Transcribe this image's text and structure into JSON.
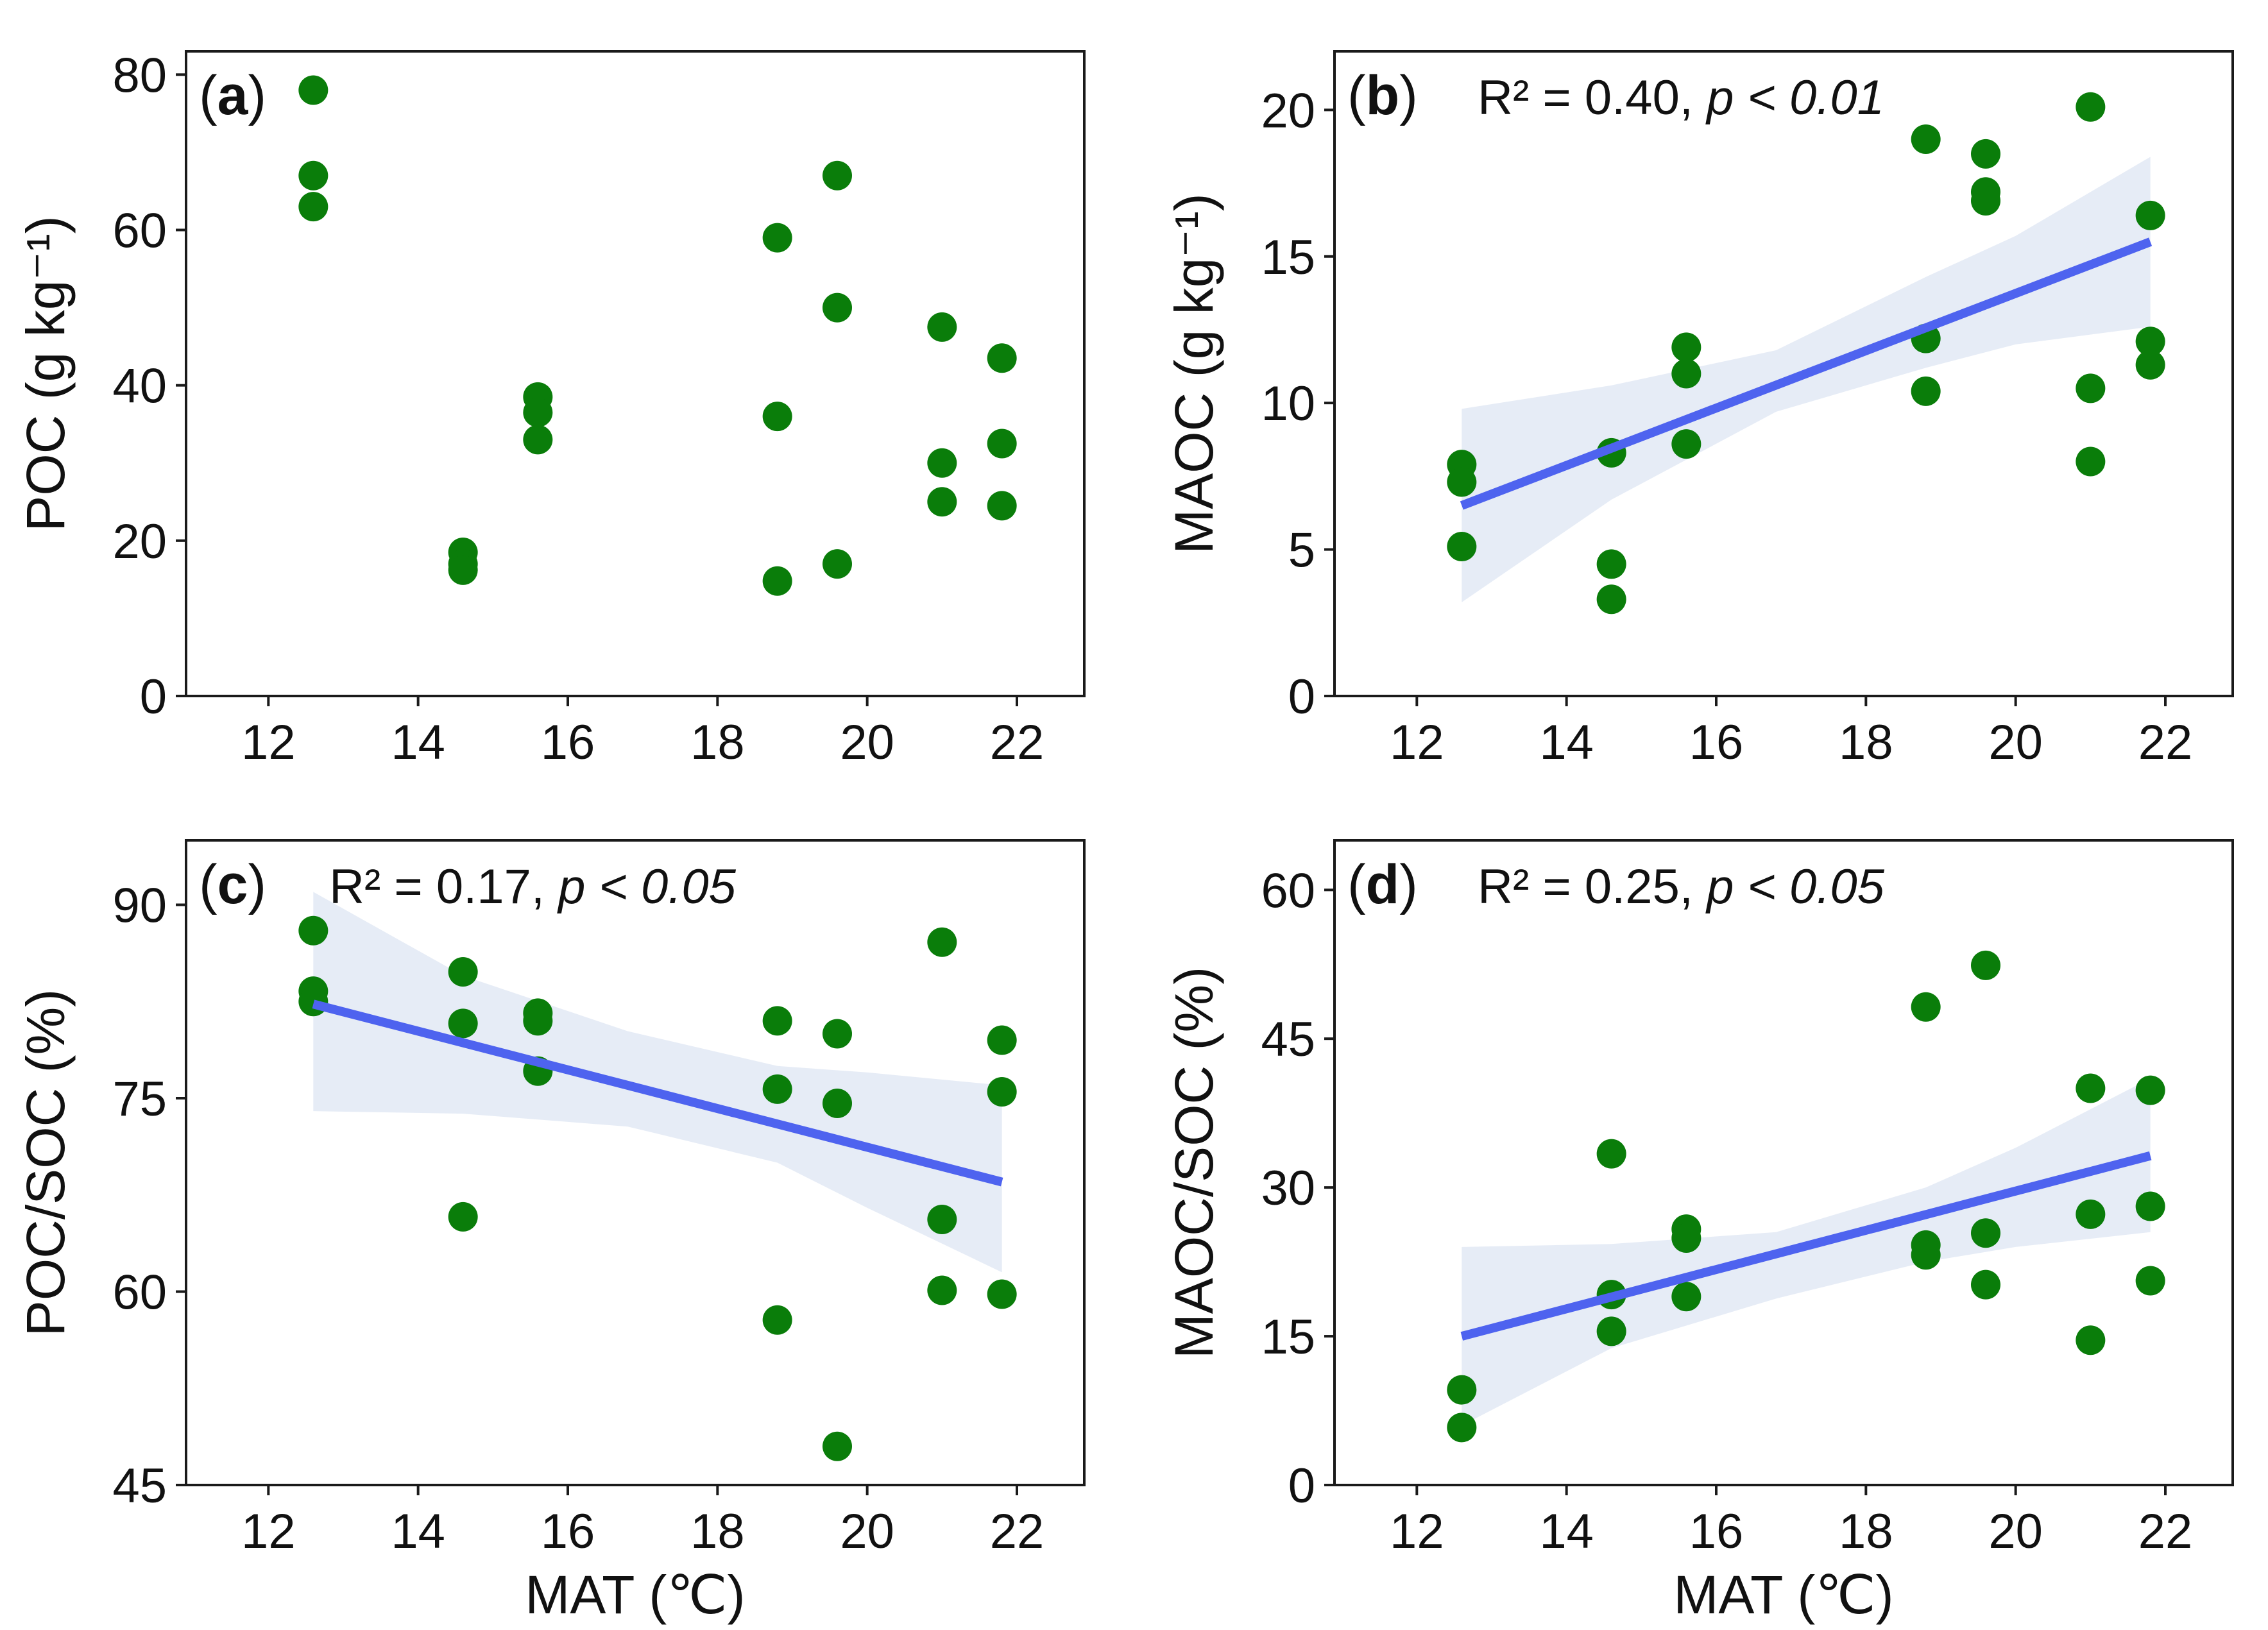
{
  "colors": {
    "point": "#0a7d0a",
    "fit_line": "#4e63ef",
    "ci_band": "#b8c9e4"
  },
  "chart_data": [
    {
      "id": "a",
      "type": "scatter",
      "label": "(a)",
      "stat_r2": "",
      "stat_p": "",
      "xlabel": "",
      "ylabel": "POC (g kg⁻¹)",
      "xlim": [
        10.9,
        22.9
      ],
      "ylim": [
        0,
        83
      ],
      "xticks": [
        12,
        14,
        16,
        18,
        20,
        22
      ],
      "yticks": [
        0,
        20,
        40,
        60,
        80
      ],
      "points": [
        [
          12.6,
          78
        ],
        [
          12.6,
          67
        ],
        [
          12.6,
          63
        ],
        [
          14.6,
          18.5
        ],
        [
          14.6,
          17
        ],
        [
          14.6,
          16.2
        ],
        [
          15.6,
          38.5
        ],
        [
          15.6,
          36.5
        ],
        [
          15.6,
          33
        ],
        [
          18.8,
          59
        ],
        [
          18.8,
          36
        ],
        [
          18.8,
          14.8
        ],
        [
          19.6,
          67
        ],
        [
          19.6,
          50
        ],
        [
          19.6,
          17
        ],
        [
          21,
          47.5
        ],
        [
          21,
          30
        ],
        [
          21,
          25
        ],
        [
          21.8,
          43.5
        ],
        [
          21.8,
          32.5
        ],
        [
          21.8,
          24.5
        ]
      ],
      "fit": null,
      "ci_upper": null,
      "ci_lower": null
    },
    {
      "id": "b",
      "type": "scatter",
      "label": "(b)",
      "stat_r2": "R² = 0.40, ",
      "stat_p": "p < 0.01",
      "xlabel": "",
      "ylabel": "MAOC (g kg⁻¹)",
      "xlim": [
        10.9,
        22.9
      ],
      "ylim": [
        0,
        22
      ],
      "xticks": [
        12,
        14,
        16,
        18,
        20,
        22
      ],
      "yticks": [
        0,
        5,
        10,
        15,
        20
      ],
      "points": [
        [
          12.6,
          7.9
        ],
        [
          12.6,
          7.3
        ],
        [
          12.6,
          5.1
        ],
        [
          14.6,
          8.3
        ],
        [
          14.6,
          4.5
        ],
        [
          14.6,
          3.3
        ],
        [
          15.6,
          11.9
        ],
        [
          15.6,
          11
        ],
        [
          15.6,
          8.6
        ],
        [
          18.8,
          19
        ],
        [
          18.8,
          12.2
        ],
        [
          18.8,
          10.4
        ],
        [
          19.6,
          18.5
        ],
        [
          19.6,
          17.2
        ],
        [
          19.6,
          16.9
        ],
        [
          21,
          20.1
        ],
        [
          21,
          10.5
        ],
        [
          21,
          8
        ],
        [
          21.8,
          16.4
        ],
        [
          21.8,
          12.1
        ],
        [
          21.8,
          11.3
        ]
      ],
      "fit": [
        [
          12.6,
          6.5
        ],
        [
          21.8,
          15.5
        ]
      ],
      "ci_upper": [
        [
          12.6,
          9.8
        ],
        [
          14.6,
          10.6
        ],
        [
          16.8,
          11.8
        ],
        [
          18.8,
          14.3
        ],
        [
          20,
          15.7
        ],
        [
          21.8,
          18.4
        ]
      ],
      "ci_lower": [
        [
          12.6,
          3.2
        ],
        [
          14.6,
          6.7
        ],
        [
          16.8,
          9.7
        ],
        [
          18.8,
          11.2
        ],
        [
          20,
          12
        ],
        [
          21.8,
          12.6
        ]
      ]
    },
    {
      "id": "c",
      "type": "scatter",
      "label": "(c)",
      "stat_r2": "R² = 0.17, ",
      "stat_p": "p < 0.05",
      "xlabel": "MAT (℃)",
      "ylabel": "POC/SOC (%)",
      "xlim": [
        10.9,
        22.9
      ],
      "ylim": [
        45,
        95
      ],
      "xticks": [
        12,
        14,
        16,
        18,
        20,
        22
      ],
      "yticks": [
        45,
        60,
        75,
        90
      ],
      "points": [
        [
          12.6,
          88
        ],
        [
          12.6,
          83.3
        ],
        [
          12.6,
          82.5
        ],
        [
          14.6,
          84.8
        ],
        [
          14.6,
          80.8
        ],
        [
          14.6,
          65.8
        ],
        [
          15.6,
          81.6
        ],
        [
          15.6,
          81
        ],
        [
          15.6,
          77.1
        ],
        [
          18.8,
          81
        ],
        [
          18.8,
          75.7
        ],
        [
          18.8,
          57.8
        ],
        [
          19.6,
          80
        ],
        [
          19.6,
          74.6
        ],
        [
          19.6,
          48
        ],
        [
          21,
          87.1
        ],
        [
          21,
          65.6
        ],
        [
          21,
          60.1
        ],
        [
          21.8,
          79.5
        ],
        [
          21.8,
          75.5
        ],
        [
          21.8,
          59.8
        ]
      ],
      "fit": [
        [
          12.6,
          82.3
        ],
        [
          21.8,
          68.5
        ]
      ],
      "ci_upper": [
        [
          12.6,
          91
        ],
        [
          14.6,
          84.5
        ],
        [
          16.8,
          80.2
        ],
        [
          18.8,
          77.5
        ],
        [
          20,
          77
        ],
        [
          21.8,
          76
        ]
      ],
      "ci_lower": [
        [
          12.6,
          74
        ],
        [
          14.6,
          73.8
        ],
        [
          16.8,
          72.8
        ],
        [
          18.8,
          70
        ],
        [
          20,
          66.5
        ],
        [
          21.8,
          61.5
        ]
      ]
    },
    {
      "id": "d",
      "type": "scatter",
      "label": "(d)",
      "stat_r2": "R² = 0.25, ",
      "stat_p": "p < 0.05",
      "xlabel": "MAT (℃)",
      "ylabel": "MAOC/SOC (%)",
      "xlim": [
        10.9,
        22.9
      ],
      "ylim": [
        0,
        65
      ],
      "xticks": [
        12,
        14,
        16,
        18,
        20,
        22
      ],
      "yticks": [
        0,
        15,
        30,
        45,
        60
      ],
      "points": [
        [
          12.6,
          9.6
        ],
        [
          12.6,
          5.8
        ],
        [
          14.6,
          33.4
        ],
        [
          14.6,
          19.2
        ],
        [
          14.6,
          15.5
        ],
        [
          15.6,
          25.8
        ],
        [
          15.6,
          24.9
        ],
        [
          15.6,
          19
        ],
        [
          18.8,
          48.2
        ],
        [
          18.8,
          24.2
        ],
        [
          18.8,
          23.2
        ],
        [
          19.6,
          52.4
        ],
        [
          19.6,
          25.4
        ],
        [
          19.6,
          20.2
        ],
        [
          21,
          40
        ],
        [
          21,
          27.3
        ],
        [
          21,
          14.6
        ],
        [
          21.8,
          39.8
        ],
        [
          21.8,
          28.1
        ],
        [
          21.8,
          20.6
        ]
      ],
      "fit": [
        [
          12.6,
          15
        ],
        [
          21.8,
          33.2
        ]
      ],
      "ci_upper": [
        [
          12.6,
          24
        ],
        [
          14.6,
          24.3
        ],
        [
          16.8,
          25.5
        ],
        [
          18.8,
          30
        ],
        [
          20,
          34
        ],
        [
          21.8,
          41
        ]
      ],
      "ci_lower": [
        [
          12.6,
          6
        ],
        [
          14.6,
          13.8
        ],
        [
          16.8,
          18.8
        ],
        [
          18.8,
          22.5
        ],
        [
          20,
          24
        ],
        [
          21.8,
          25.5
        ]
      ]
    }
  ]
}
